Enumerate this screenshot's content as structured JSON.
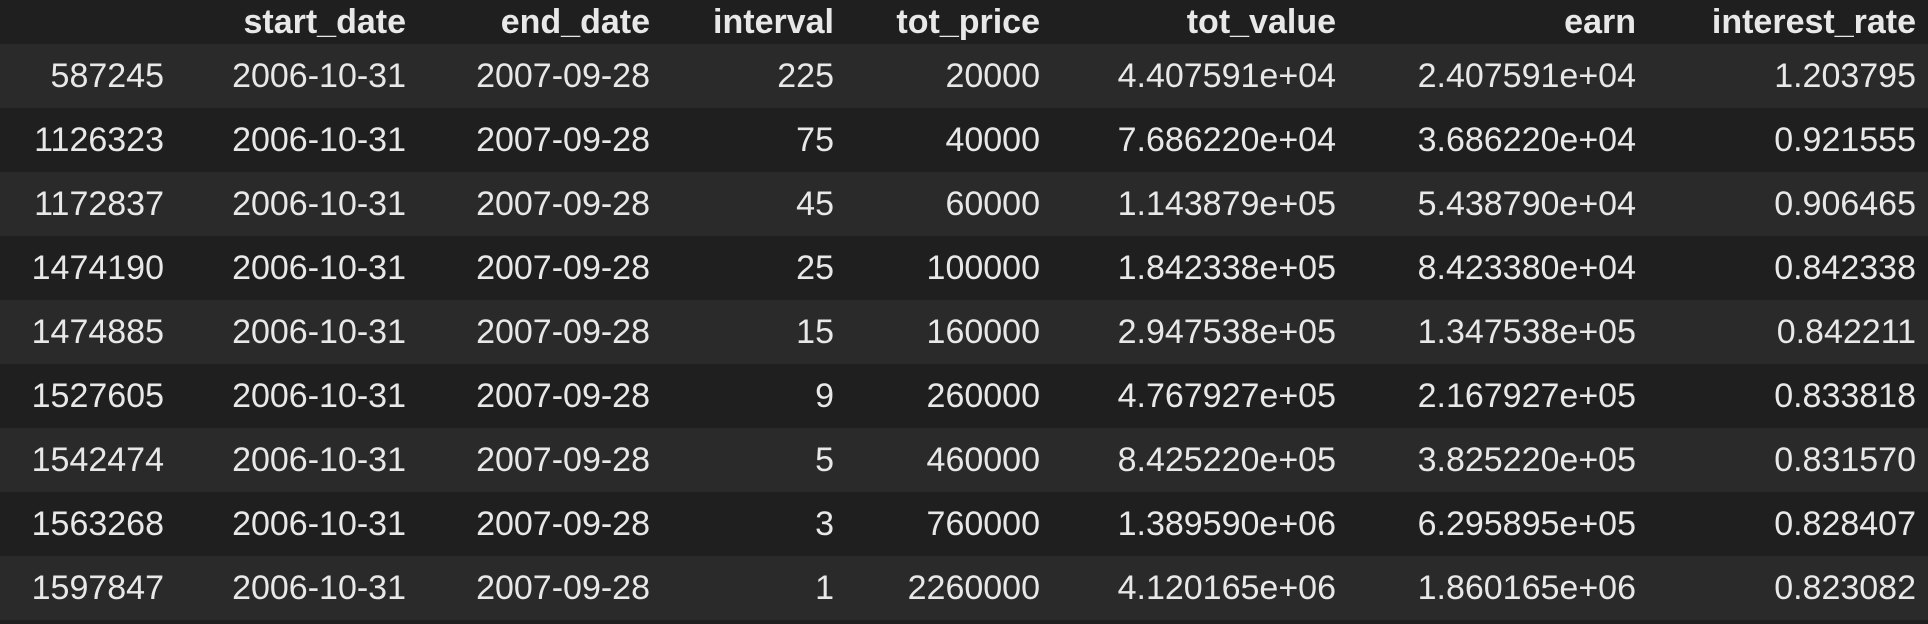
{
  "dataframe": {
    "columns": [
      "",
      "start_date",
      "end_date",
      "interval",
      "tot_price",
      "tot_value",
      "earn",
      "interest_rate"
    ],
    "rows": [
      {
        "index": "587245",
        "start_date": "2006-10-31",
        "end_date": "2007-09-28",
        "interval": "225",
        "tot_price": "20000",
        "tot_value": "4.407591e+04",
        "earn": "2.407591e+04",
        "interest_rate": "1.203795"
      },
      {
        "index": "1126323",
        "start_date": "2006-10-31",
        "end_date": "2007-09-28",
        "interval": "75",
        "tot_price": "40000",
        "tot_value": "7.686220e+04",
        "earn": "3.686220e+04",
        "interest_rate": "0.921555"
      },
      {
        "index": "1172837",
        "start_date": "2006-10-31",
        "end_date": "2007-09-28",
        "interval": "45",
        "tot_price": "60000",
        "tot_value": "1.143879e+05",
        "earn": "5.438790e+04",
        "interest_rate": "0.906465"
      },
      {
        "index": "1474190",
        "start_date": "2006-10-31",
        "end_date": "2007-09-28",
        "interval": "25",
        "tot_price": "100000",
        "tot_value": "1.842338e+05",
        "earn": "8.423380e+04",
        "interest_rate": "0.842338"
      },
      {
        "index": "1474885",
        "start_date": "2006-10-31",
        "end_date": "2007-09-28",
        "interval": "15",
        "tot_price": "160000",
        "tot_value": "2.947538e+05",
        "earn": "1.347538e+05",
        "interest_rate": "0.842211"
      },
      {
        "index": "1527605",
        "start_date": "2006-10-31",
        "end_date": "2007-09-28",
        "interval": "9",
        "tot_price": "260000",
        "tot_value": "4.767927e+05",
        "earn": "2.167927e+05",
        "interest_rate": "0.833818"
      },
      {
        "index": "1542474",
        "start_date": "2006-10-31",
        "end_date": "2007-09-28",
        "interval": "5",
        "tot_price": "460000",
        "tot_value": "8.425220e+05",
        "earn": "3.825220e+05",
        "interest_rate": "0.831570"
      },
      {
        "index": "1563268",
        "start_date": "2006-10-31",
        "end_date": "2007-09-28",
        "interval": "3",
        "tot_price": "760000",
        "tot_value": "1.389590e+06",
        "earn": "6.295895e+05",
        "interest_rate": "0.828407"
      },
      {
        "index": "1597847",
        "start_date": "2006-10-31",
        "end_date": "2007-09-28",
        "interval": "1",
        "tot_price": "2260000",
        "tot_value": "4.120165e+06",
        "earn": "1.860165e+06",
        "interest_rate": "0.823082"
      }
    ]
  },
  "colors": {
    "background": "#1f1f1f",
    "row_stripe": "#2a2a2a",
    "text": "#e8e8e8"
  }
}
